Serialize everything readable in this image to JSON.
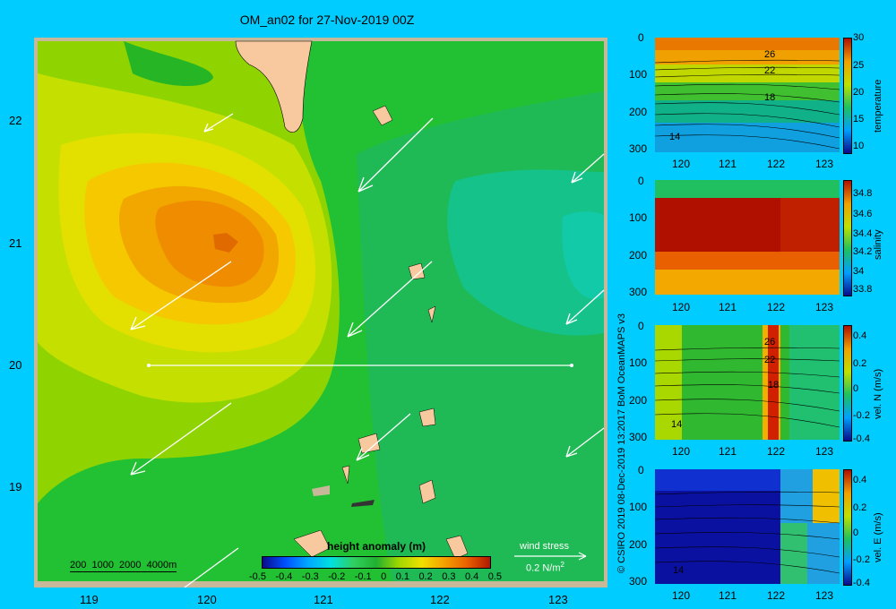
{
  "title": "OM_an02 for 27-Nov-2019 00Z",
  "map": {
    "lon_ticks": [
      "119",
      "120",
      "121",
      "122",
      "123"
    ],
    "lat_ticks": [
      "22",
      "21",
      "20",
      "19"
    ],
    "depth_legend": "200  1000  2000  4000m",
    "colorbar": {
      "label": "height anomaly  (m)",
      "ticks": [
        "-0.5",
        "-0.4",
        "-0.3",
        "-0.2",
        "-0.1",
        "0",
        "0.1",
        "0.2",
        "0.3",
        "0.4",
        "0.5"
      ]
    },
    "wind_stress": {
      "label": "wind stress",
      "value": "0.2 N/m",
      "exp": "2"
    }
  },
  "credit": "© CSIRO 2019   08-Dec-2019 13:2017 BoM OceanMAPS v3",
  "sections": [
    {
      "name": "temperature",
      "colorbar_ticks": [
        "30",
        "25",
        "20",
        "15",
        "10"
      ],
      "contour_labels": [
        "26",
        "22",
        "18",
        "14"
      ]
    },
    {
      "name": "salinity",
      "colorbar_ticks": [
        "34.8",
        "34.6",
        "34.4",
        "34.2",
        "34",
        "33.8"
      ],
      "contour_labels": []
    },
    {
      "name": "vel. N  (m/s)",
      "colorbar_ticks": [
        "0.4",
        "0.2",
        "0",
        "-0.2",
        "-0.4"
      ],
      "contour_labels": [
        "26",
        "22",
        "18",
        "14"
      ]
    },
    {
      "name": "vel. E  (m/s)",
      "colorbar_ticks": [
        "0.4",
        "0.2",
        "0",
        "-0.2",
        "-0.4"
      ],
      "contour_labels": [
        "14"
      ]
    }
  ],
  "section_axes": {
    "depth_ticks": [
      "0",
      "100",
      "200",
      "300"
    ],
    "lon_ticks": [
      "120",
      "121",
      "122",
      "123"
    ]
  }
}
